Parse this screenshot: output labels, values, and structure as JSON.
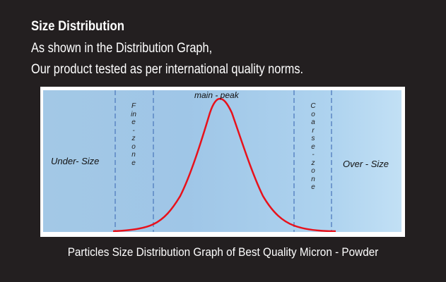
{
  "header": {
    "title": "Size Distribution",
    "line1": "As shown in the Distribution Graph,",
    "line2": "Our product tested as per international quality norms."
  },
  "graph": {
    "labels": {
      "under_size": "Under- Size",
      "fine_zone": "Fine - zone",
      "main_peak": "main - peak",
      "coarse_zone": "Coarse - zone",
      "over_size": "Over - Size"
    },
    "curve_color": "#e8111b",
    "divider_color": "#5b86c4"
  },
  "caption": "Particles Size Distribution Graph of Best Quality Micron - Powder"
}
